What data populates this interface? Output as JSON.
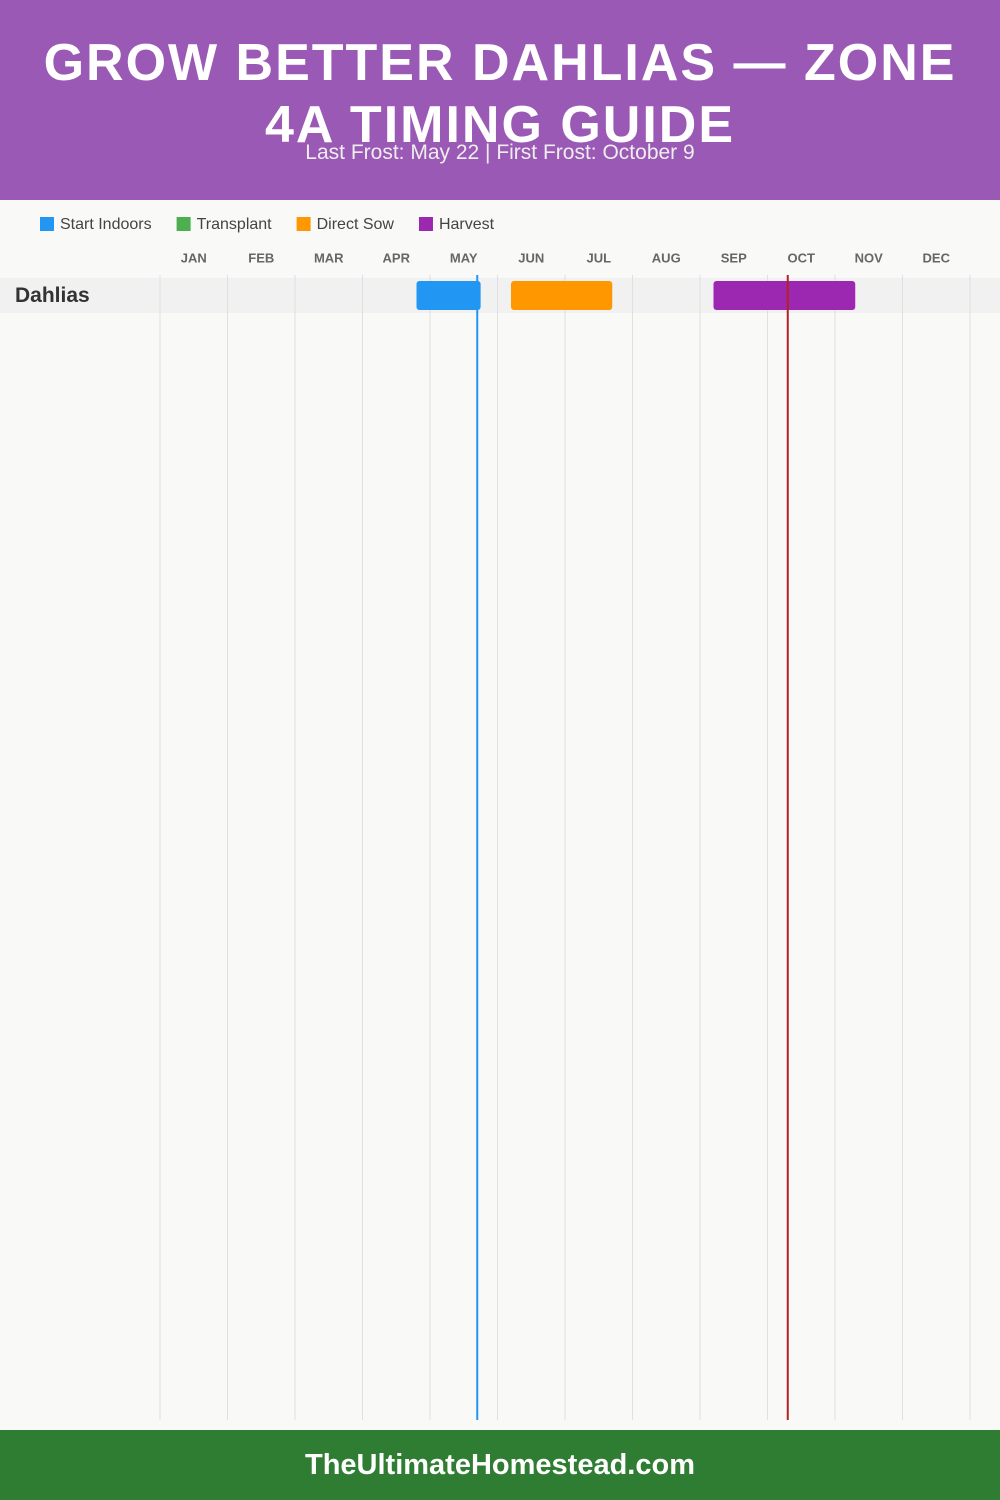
{
  "chart_data": {
    "type": "timeline",
    "title": "GROW BETTER DAHLIAS — ZONE 4A TIMING GUIDE",
    "subtitle": "Last Frost: May 22 | First Frost: October 9",
    "footer": "TheUltimateHomestead.com",
    "categories": [
      "JAN",
      "FEB",
      "MAR",
      "APR",
      "MAY",
      "JUN",
      "JUL",
      "AUG",
      "SEP",
      "OCT",
      "NOV",
      "DEC"
    ],
    "rows": [
      "Dahlias"
    ],
    "xlim": [
      0,
      12
    ],
    "grid": true,
    "series": [
      {
        "name": "Start Indoors",
        "color": "#2196f3",
        "start": [
          3.8
        ],
        "end": [
          4.75
        ]
      },
      {
        "name": "Transplant",
        "color": "#4caf50",
        "start": [
          null
        ],
        "end": [
          null
        ]
      },
      {
        "name": "Direct Sow",
        "color": "#ff9800",
        "start": [
          5.2
        ],
        "end": [
          6.7
        ]
      },
      {
        "name": "Harvest",
        "color": "#9c27b0",
        "start": [
          8.2
        ],
        "end": [
          10.3
        ]
      }
    ],
    "markers": [
      {
        "value": 4.7,
        "color": "#2196f3"
      },
      {
        "value": 9.3,
        "color": "#b22222"
      }
    ]
  }
}
